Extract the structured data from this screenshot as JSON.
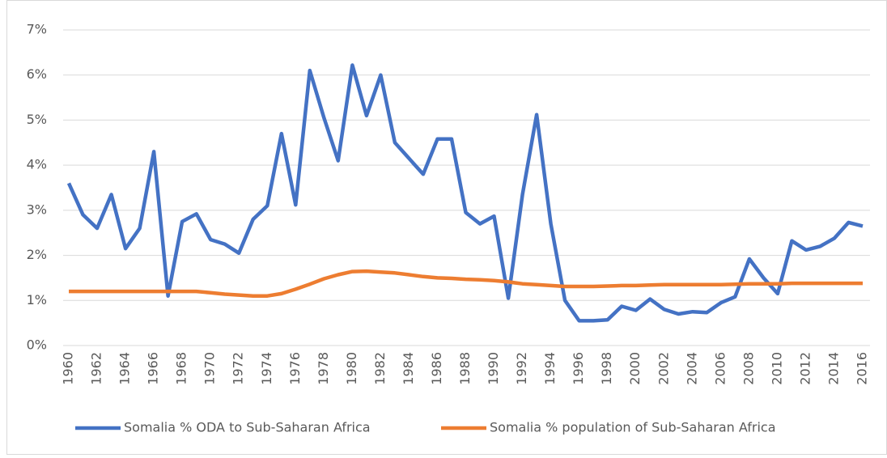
{
  "chart_data": {
    "type": "line",
    "categories": [
      "1960",
      null,
      "1962",
      null,
      "1964",
      null,
      "1966",
      null,
      "1968",
      null,
      "1970",
      null,
      "1972",
      null,
      "1974",
      null,
      "1976",
      null,
      "1978",
      null,
      "1980",
      null,
      "1982",
      null,
      "1984",
      null,
      "1986",
      null,
      "1988",
      null,
      "1990",
      null,
      "1992",
      null,
      "1994",
      null,
      "1996",
      null,
      "1998",
      null,
      "2000",
      null,
      "2002",
      null,
      "2004",
      null,
      "2006",
      null,
      "2008",
      null,
      "2010",
      null,
      "2012",
      null,
      "2014",
      null,
      "2016"
    ],
    "series": [
      {
        "name": "Somalia % ODA to Sub-Saharan Africa",
        "color": "#4472c4",
        "values": [
          3.6,
          2.9,
          2.6,
          3.35,
          2.15,
          2.6,
          4.3,
          1.1,
          2.75,
          2.92,
          2.35,
          2.25,
          2.05,
          2.8,
          3.1,
          4.7,
          3.12,
          6.1,
          5.05,
          4.1,
          6.22,
          5.1,
          6.0,
          4.5,
          4.15,
          3.8,
          4.58,
          4.58,
          2.95,
          2.7,
          2.87,
          1.05,
          3.35,
          5.12,
          2.7,
          1.0,
          0.55,
          0.55,
          0.57,
          0.87,
          0.78,
          1.03,
          0.8,
          0.7,
          0.75,
          0.73,
          0.95,
          1.08,
          1.92,
          1.5,
          1.15,
          2.32,
          2.12,
          2.2,
          2.38,
          2.73,
          2.65
        ]
      },
      {
        "name": "Somalia % population of Sub-Saharan Africa",
        "color": "#ed7d31",
        "values": [
          1.2,
          1.2,
          1.2,
          1.2,
          1.2,
          1.2,
          1.2,
          1.2,
          1.2,
          1.2,
          1.17,
          1.14,
          1.12,
          1.1,
          1.1,
          1.15,
          1.25,
          1.36,
          1.48,
          1.57,
          1.64,
          1.65,
          1.63,
          1.61,
          1.57,
          1.53,
          1.5,
          1.49,
          1.47,
          1.46,
          1.44,
          1.41,
          1.37,
          1.35,
          1.33,
          1.31,
          1.31,
          1.31,
          1.32,
          1.33,
          1.33,
          1.34,
          1.35,
          1.35,
          1.35,
          1.35,
          1.35,
          1.36,
          1.37,
          1.37,
          1.37,
          1.38,
          1.38,
          1.38,
          1.38,
          1.38,
          1.38
        ]
      }
    ],
    "ylim": [
      0,
      7
    ],
    "yticks": [
      {
        "value": 0,
        "label": "0%"
      },
      {
        "value": 1,
        "label": "1%"
      },
      {
        "value": 2,
        "label": "2%"
      },
      {
        "value": 3,
        "label": "3%"
      },
      {
        "value": 4,
        "label": "4%"
      },
      {
        "value": 5,
        "label": "5%"
      },
      {
        "value": 6,
        "label": "6%"
      },
      {
        "value": 7,
        "label": "7%"
      }
    ],
    "grid": true,
    "legend": "bottom"
  }
}
